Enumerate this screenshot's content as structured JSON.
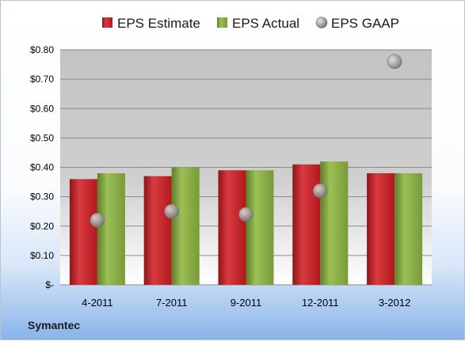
{
  "company": "Symantec",
  "chart_data": {
    "type": "bar",
    "categories": [
      "4-2011",
      "7-2011",
      "9-2011",
      "12-2011",
      "3-2012"
    ],
    "series": [
      {
        "name": "EPS Estimate",
        "type": "bar",
        "color": "#c0282d",
        "values": [
          0.36,
          0.37,
          0.39,
          0.41,
          0.38
        ]
      },
      {
        "name": "EPS Actual",
        "type": "bar",
        "color": "#86a844",
        "values": [
          0.38,
          0.4,
          0.39,
          0.42,
          0.38
        ]
      },
      {
        "name": "EPS GAAP",
        "type": "scatter",
        "color": "#9a9a9a",
        "values": [
          0.22,
          0.25,
          0.24,
          0.32,
          0.76
        ]
      }
    ],
    "yticks": [
      "$-",
      "$0.10",
      "$0.20",
      "$0.30",
      "$0.40",
      "$0.50",
      "$0.60",
      "$0.70",
      "$0.80"
    ],
    "ylim": [
      0,
      0.8
    ],
    "grid": true,
    "legend": "top"
  }
}
